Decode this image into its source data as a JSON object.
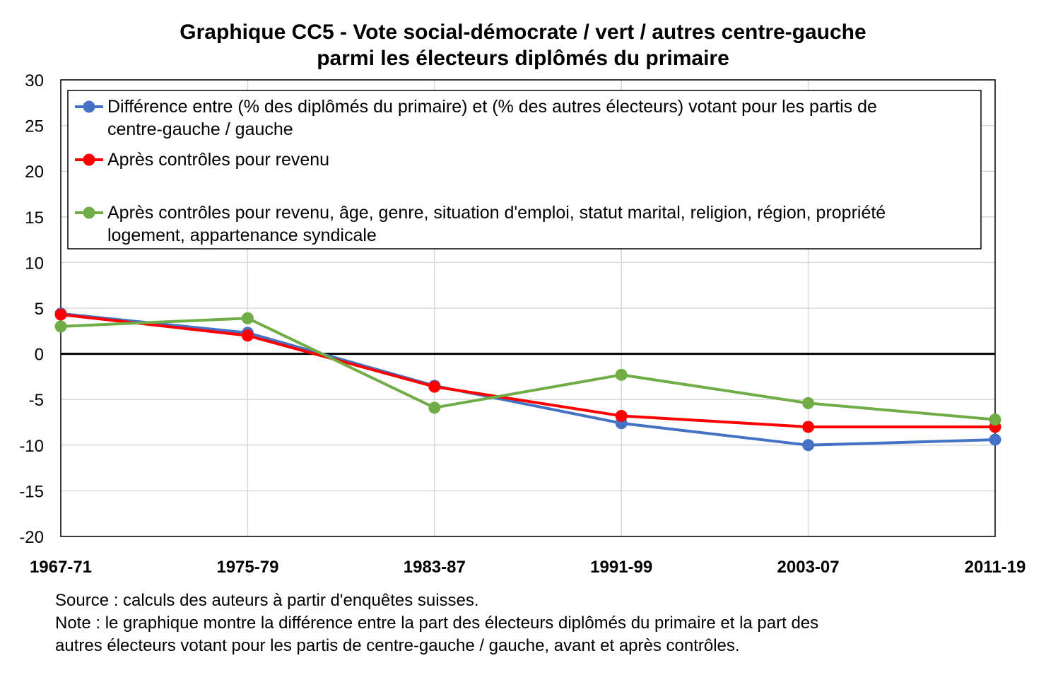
{
  "chart_data": {
    "type": "line",
    "title": [
      "Graphique CC5 - Vote social-démocrate / vert / autres centre-gauche",
      "parmi les électeurs diplômés du primaire"
    ],
    "categories": [
      "1967-71",
      "1975-79",
      "1983-87",
      "1991-99",
      "2003-07",
      "2011-19"
    ],
    "ylim": [
      -20,
      30
    ],
    "yticks": [
      -20,
      -15,
      -10,
      -5,
      0,
      5,
      10,
      15,
      20,
      25,
      30
    ],
    "grid": true,
    "legend_position": "top",
    "series": [
      {
        "name": [
          "Différence entre (% des diplômés du primaire) et (% des autres électeurs) votant pour les partis de",
          "centre-gauche / gauche"
        ],
        "color": "#4472C4",
        "values": [
          4.4,
          2.3,
          -3.5,
          -7.6,
          -10.0,
          -9.4
        ]
      },
      {
        "name": [
          "Après contrôles pour revenu"
        ],
        "color": "#FF0000",
        "values": [
          4.3,
          2.0,
          -3.6,
          -6.8,
          -8.0,
          -8.0
        ]
      },
      {
        "name": [
          "Après contrôles pour revenu, âge, genre, situation d'emploi, statut marital, religion, région, propriété",
          "logement, appartenance syndicale"
        ],
        "color": "#70AD47",
        "values": [
          3.0,
          3.9,
          -5.9,
          -2.3,
          -5.4,
          -7.2
        ]
      }
    ]
  },
  "notes": {
    "source": "Source : calculs des auteurs à partir d'enquêtes suisses.",
    "note_line1": "Note : le graphique montre la différence entre la part des électeurs diplômés du primaire et la part des",
    "note_line2": "autres électeurs votant pour les partis de centre-gauche / gauche, avant et après contrôles."
  }
}
